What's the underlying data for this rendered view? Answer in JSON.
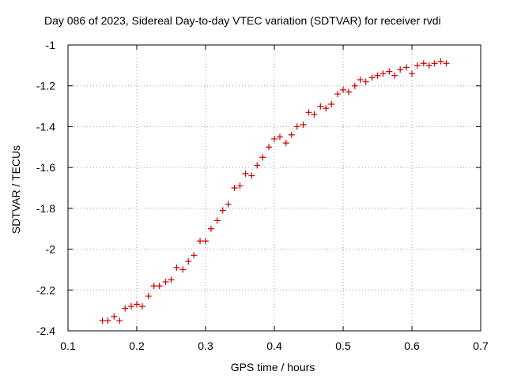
{
  "chart_data": {
    "type": "scatter",
    "title": "Day 086 of 2023, Sidereal Day-to-day VTEC variation (SDTVAR) for receiver rvdi",
    "xlabel": "GPS time / hours",
    "ylabel": "SDTVAR / TECUs",
    "xlim": [
      0.1,
      0.7
    ],
    "ylim": [
      -2.4,
      -1.0
    ],
    "xticks": [
      0.1,
      0.2,
      0.3,
      0.4,
      0.5,
      0.6,
      0.7
    ],
    "xtick_labels": [
      "0.1",
      "0.2",
      "0.3",
      "0.4",
      "0.5",
      "0.6",
      "0.7"
    ],
    "yticks": [
      -2.4,
      -2.2,
      -2.0,
      -1.8,
      -1.6,
      -1.4,
      -1.2,
      -1.0
    ],
    "ytick_labels": [
      "-2.4",
      "-2.2",
      "-2",
      "-1.8",
      "-1.6",
      "-1.4",
      "-1.2",
      "-1"
    ],
    "grid": true,
    "marker": "+",
    "marker_color": "#cc0000",
    "series": [
      {
        "x": [
          0.15,
          0.158,
          0.167,
          0.175,
          0.183,
          0.192,
          0.2,
          0.208,
          0.217,
          0.225,
          0.233,
          0.242,
          0.25,
          0.258,
          0.267,
          0.275,
          0.283,
          0.292,
          0.3,
          0.308,
          0.317,
          0.325,
          0.333,
          0.342,
          0.35,
          0.358,
          0.367,
          0.375,
          0.383,
          0.392,
          0.4,
          0.408,
          0.417,
          0.425,
          0.433,
          0.442,
          0.45,
          0.458,
          0.467,
          0.475,
          0.483,
          0.492,
          0.5,
          0.508,
          0.517,
          0.525,
          0.533,
          0.542,
          0.55,
          0.558,
          0.567,
          0.575,
          0.583,
          0.592,
          0.6,
          0.608,
          0.617,
          0.625,
          0.633,
          0.642,
          0.65
        ],
        "y": [
          -2.35,
          -2.35,
          -2.33,
          -2.35,
          -2.29,
          -2.28,
          -2.27,
          -2.28,
          -2.23,
          -2.18,
          -2.18,
          -2.16,
          -2.15,
          -2.09,
          -2.1,
          -2.06,
          -2.03,
          -1.96,
          -1.96,
          -1.9,
          -1.86,
          -1.81,
          -1.78,
          -1.7,
          -1.69,
          -1.63,
          -1.64,
          -1.59,
          -1.55,
          -1.5,
          -1.46,
          -1.45,
          -1.48,
          -1.44,
          -1.4,
          -1.39,
          -1.33,
          -1.34,
          -1.3,
          -1.31,
          -1.29,
          -1.24,
          -1.22,
          -1.23,
          -1.2,
          -1.17,
          -1.18,
          -1.16,
          -1.15,
          -1.14,
          -1.13,
          -1.15,
          -1.12,
          -1.11,
          -1.14,
          -1.1,
          -1.09,
          -1.1,
          -1.09,
          -1.08,
          -1.09
        ]
      }
    ]
  }
}
